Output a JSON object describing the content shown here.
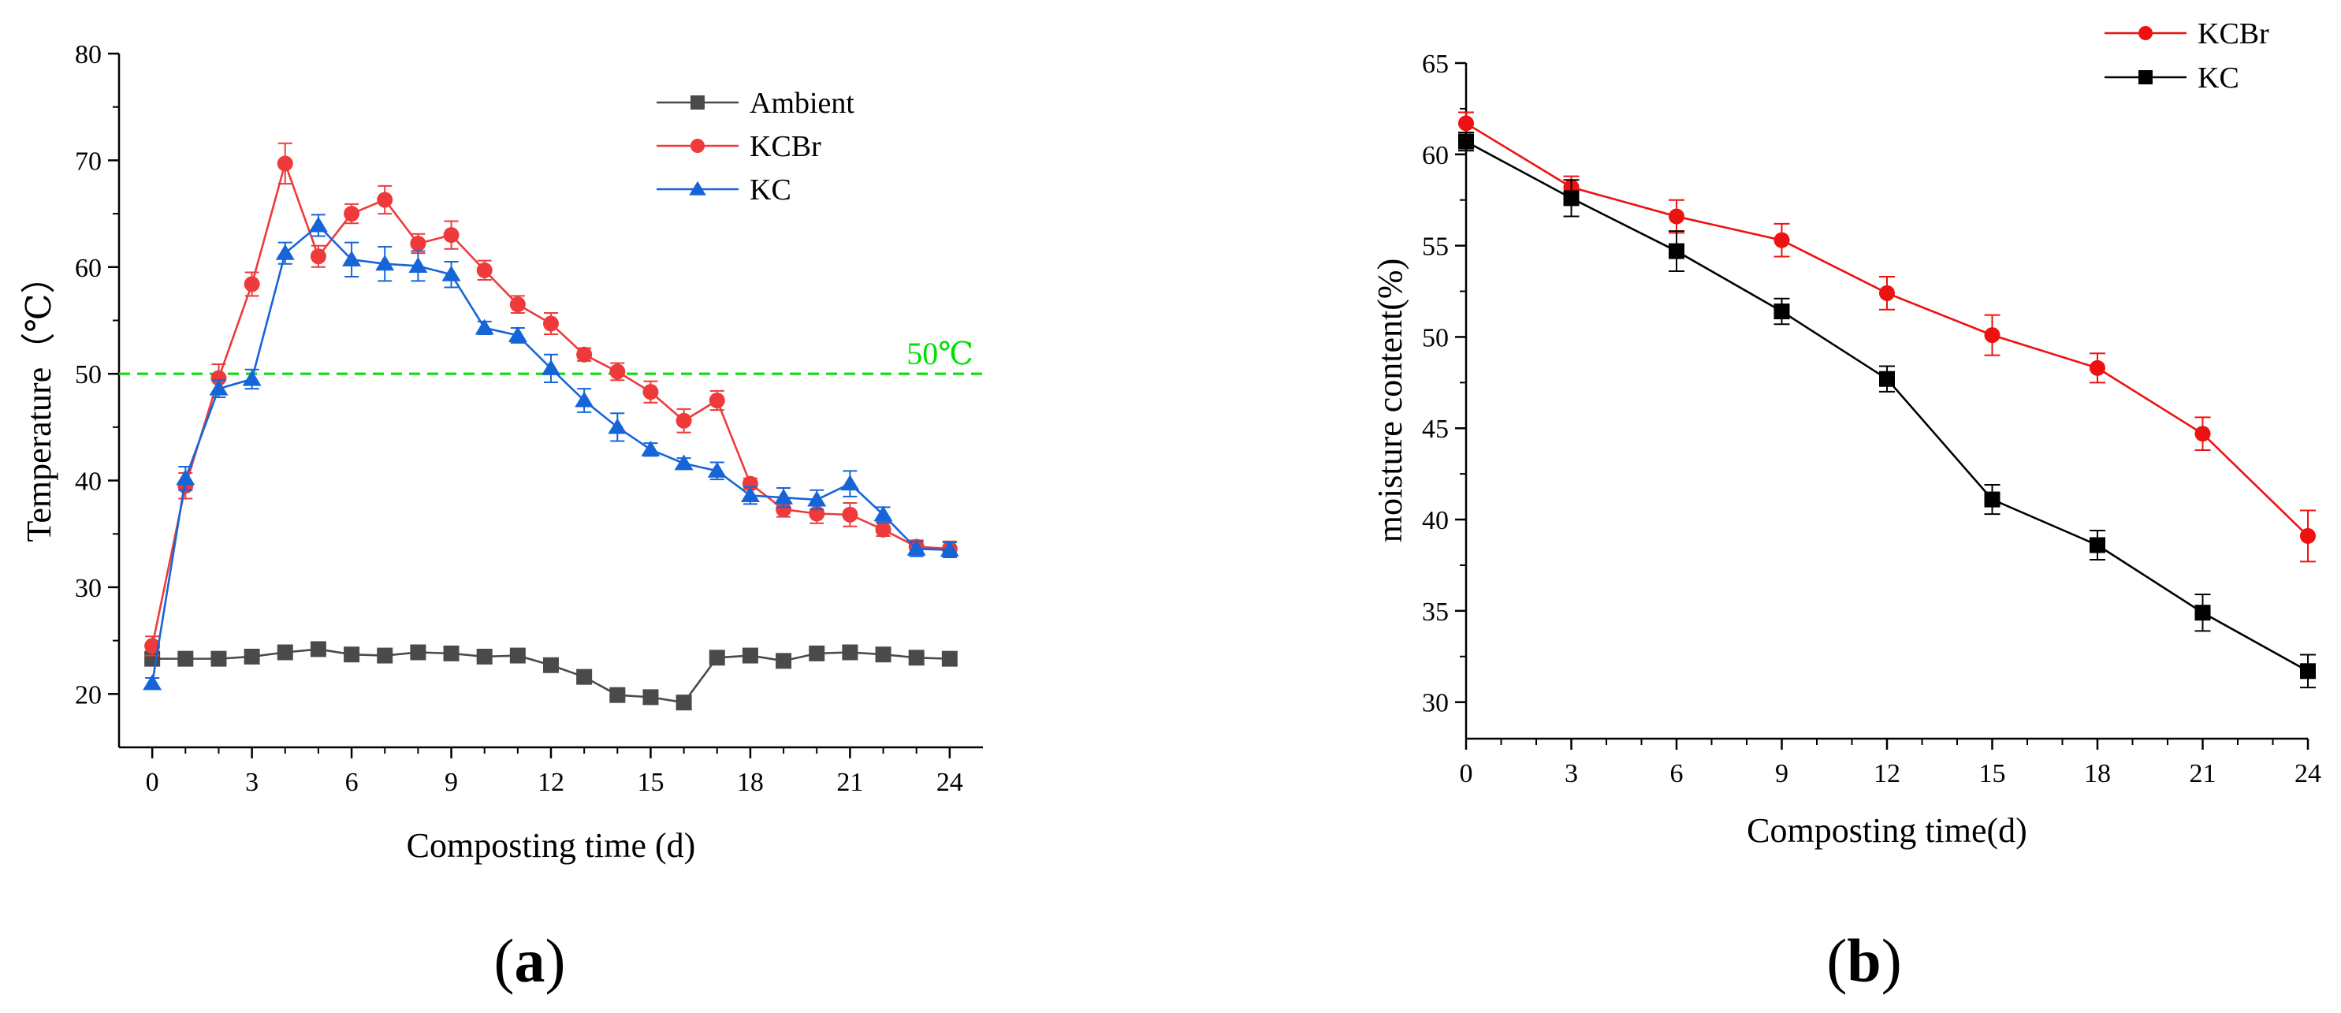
{
  "chart_data": [
    {
      "type": "line",
      "panel_label": "(a)",
      "panel_letter": "a",
      "xlabel": "Composting time (d)",
      "ylabel": "Temperature（℃）",
      "xlim": [
        -1,
        25
      ],
      "ylim": [
        15,
        80
      ],
      "xticks": [
        0,
        3,
        6,
        9,
        12,
        15,
        18,
        21,
        24
      ],
      "yticks": [
        20,
        30,
        40,
        50,
        60,
        70,
        80
      ],
      "legend_position": "top-right",
      "reference_line": {
        "y": 50,
        "label": "50℃",
        "color": "#00e000"
      },
      "x": [
        0,
        1,
        2,
        3,
        4,
        5,
        6,
        7,
        8,
        9,
        10,
        11,
        12,
        13,
        14,
        15,
        16,
        17,
        18,
        19,
        20,
        21,
        22,
        23,
        24
      ],
      "series": [
        {
          "name": "Ambient",
          "color": "#4a4a4a",
          "marker": "square",
          "values": [
            23.3,
            23.3,
            23.3,
            23.5,
            23.9,
            24.2,
            23.7,
            23.6,
            23.9,
            23.8,
            23.5,
            23.6,
            22.7,
            21.6,
            19.9,
            19.7,
            19.2,
            23.4,
            23.6,
            23.1,
            23.8,
            23.9,
            23.7,
            23.4,
            23.3
          ],
          "errors": []
        },
        {
          "name": "KCBr",
          "color": "#ee3a3a",
          "marker": "circle",
          "values": [
            24.5,
            39.5,
            49.6,
            58.4,
            69.7,
            61.0,
            65.0,
            66.3,
            62.2,
            63.0,
            59.7,
            56.5,
            54.7,
            51.8,
            50.2,
            48.3,
            45.6,
            47.5,
            39.7,
            37.3,
            36.9,
            36.8,
            35.4,
            33.8,
            33.6
          ],
          "errors": [
            0.9,
            1.2,
            1.3,
            1.1,
            1.9,
            1.0,
            0.9,
            1.3,
            0.9,
            1.3,
            0.9,
            0.8,
            1.0,
            0.6,
            0.8,
            1.0,
            1.1,
            0.9,
            0.5,
            0.7,
            0.9,
            1.1,
            0.6,
            0.6,
            0.7
          ]
        },
        {
          "name": "KC",
          "color": "#1565d8",
          "marker": "triangle",
          "values": [
            21.0,
            40.2,
            48.6,
            49.5,
            61.3,
            63.9,
            60.7,
            60.3,
            60.1,
            59.3,
            54.3,
            53.6,
            50.5,
            47.5,
            45.0,
            42.9,
            41.6,
            40.9,
            38.6,
            38.4,
            38.2,
            39.7,
            36.8,
            33.6,
            33.5
          ],
          "errors": [
            0.5,
            1.1,
            0.8,
            0.9,
            1.0,
            1.0,
            1.6,
            1.6,
            1.4,
            1.2,
            0.6,
            0.7,
            1.3,
            1.1,
            1.3,
            0.6,
            0.5,
            0.8,
            0.8,
            0.9,
            0.9,
            1.2,
            0.7,
            0.7,
            0.7
          ]
        }
      ]
    },
    {
      "type": "line",
      "panel_label": "(b)",
      "panel_letter": "b",
      "xlabel": "Composting time(d)",
      "ylabel": "moisture content(%)",
      "xlim": [
        0,
        24
      ],
      "ylim": [
        28,
        65
      ],
      "xticks": [
        0,
        3,
        6,
        9,
        12,
        15,
        18,
        21,
        24
      ],
      "yticks": [
        30,
        35,
        40,
        45,
        50,
        55,
        60,
        65
      ],
      "legend_position": "top-right",
      "x": [
        0,
        3,
        6,
        9,
        12,
        15,
        18,
        21,
        24
      ],
      "series": [
        {
          "name": "KCBr",
          "color": "#ee1111",
          "marker": "circle",
          "values": [
            61.7,
            58.2,
            56.6,
            55.3,
            52.4,
            50.1,
            48.3,
            44.7,
            39.1
          ],
          "errors": [
            0.6,
            0.6,
            0.9,
            0.9,
            0.9,
            1.1,
            0.8,
            0.9,
            1.4
          ]
        },
        {
          "name": "KC",
          "color": "#000000",
          "marker": "square",
          "values": [
            60.7,
            57.6,
            54.7,
            51.4,
            47.7,
            41.1,
            38.6,
            34.9,
            31.7
          ],
          "errors": [
            0.5,
            1.0,
            1.1,
            0.7,
            0.7,
            0.8,
            0.8,
            1.0,
            0.9
          ]
        }
      ]
    }
  ]
}
